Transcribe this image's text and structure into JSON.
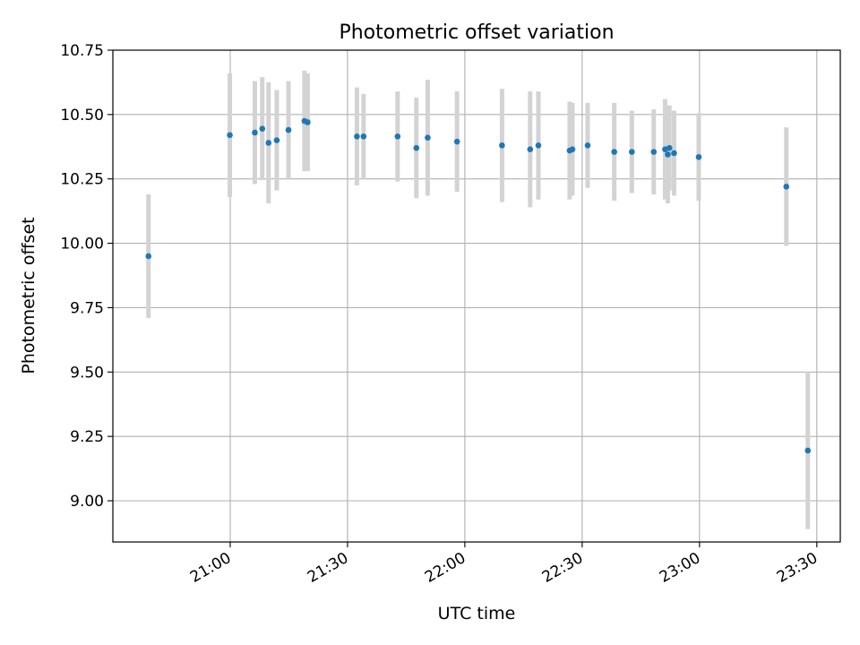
{
  "chart_data": {
    "type": "scatter",
    "title": "Photometric offset variation",
    "xlabel": "UTC time",
    "ylabel": "Photometric offset",
    "xlim": [
      "20:30:00",
      "23:36:00"
    ],
    "ylim": [
      8.84,
      10.75
    ],
    "grid": true,
    "xticks": [
      {
        "value": "21:00:00",
        "label": "21:00"
      },
      {
        "value": "21:30:00",
        "label": "21:30"
      },
      {
        "value": "22:00:00",
        "label": "22:00"
      },
      {
        "value": "22:30:00",
        "label": "22:30"
      },
      {
        "value": "23:00:00",
        "label": "23:00"
      },
      {
        "value": "23:30:00",
        "label": "23:30"
      }
    ],
    "yticks": [
      9.0,
      9.25,
      9.5,
      9.75,
      10.0,
      10.25,
      10.5,
      10.75
    ],
    "ytick_labels": [
      "9.00",
      "9.25",
      "9.50",
      "9.75",
      "10.00",
      "10.25",
      "10.50",
      "10.75"
    ],
    "point_color": "#1f77b4",
    "errorbar_color": "#d3d3d3",
    "points": [
      {
        "x": "20:39:06",
        "y": 9.95,
        "err": 0.24
      },
      {
        "x": "20:59:54",
        "y": 10.42,
        "err": 0.24
      },
      {
        "x": "21:06:18",
        "y": 10.43,
        "err": 0.2
      },
      {
        "x": "21:08:12",
        "y": 10.445,
        "err": 0.2
      },
      {
        "x": "21:09:48",
        "y": 10.39,
        "err": 0.235
      },
      {
        "x": "21:11:54",
        "y": 10.4,
        "err": 0.195
      },
      {
        "x": "21:14:54",
        "y": 10.44,
        "err": 0.19
      },
      {
        "x": "21:19:00",
        "y": 10.475,
        "err": 0.195
      },
      {
        "x": "21:19:48",
        "y": 10.47,
        "err": 0.19
      },
      {
        "x": "21:32:24",
        "y": 10.415,
        "err": 0.19
      },
      {
        "x": "21:34:06",
        "y": 10.415,
        "err": 0.165
      },
      {
        "x": "21:42:48",
        "y": 10.415,
        "err": 0.175
      },
      {
        "x": "21:47:36",
        "y": 10.37,
        "err": 0.195
      },
      {
        "x": "21:50:30",
        "y": 10.41,
        "err": 0.225
      },
      {
        "x": "21:58:00",
        "y": 10.395,
        "err": 0.195
      },
      {
        "x": "22:09:30",
        "y": 10.38,
        "err": 0.22
      },
      {
        "x": "22:16:42",
        "y": 10.365,
        "err": 0.225
      },
      {
        "x": "22:18:48",
        "y": 10.38,
        "err": 0.21
      },
      {
        "x": "22:26:48",
        "y": 10.36,
        "err": 0.19
      },
      {
        "x": "22:27:30",
        "y": 10.365,
        "err": 0.18
      },
      {
        "x": "22:31:24",
        "y": 10.38,
        "err": 0.165
      },
      {
        "x": "22:38:12",
        "y": 10.355,
        "err": 0.19
      },
      {
        "x": "22:42:42",
        "y": 10.355,
        "err": 0.16
      },
      {
        "x": "22:48:18",
        "y": 10.355,
        "err": 0.165
      },
      {
        "x": "22:51:12",
        "y": 10.365,
        "err": 0.195
      },
      {
        "x": "22:51:54",
        "y": 10.345,
        "err": 0.19
      },
      {
        "x": "22:52:18",
        "y": 10.37,
        "err": 0.165
      },
      {
        "x": "22:53:30",
        "y": 10.35,
        "err": 0.165
      },
      {
        "x": "22:59:48",
        "y": 10.335,
        "err": 0.17
      },
      {
        "x": "23:22:12",
        "y": 10.22,
        "err": 0.23
      },
      {
        "x": "23:27:42",
        "y": 9.195,
        "err": 0.305
      }
    ]
  }
}
